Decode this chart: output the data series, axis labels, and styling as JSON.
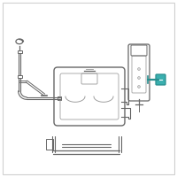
{
  "bg_color": "#ffffff",
  "border_color": "#d0d0d0",
  "line_color": "#999999",
  "dark_line": "#666666",
  "teal_color": "#2a8f8f",
  "teal_fill": "#3aafaf",
  "figsize": [
    2.0,
    2.0
  ],
  "dpi": 100
}
